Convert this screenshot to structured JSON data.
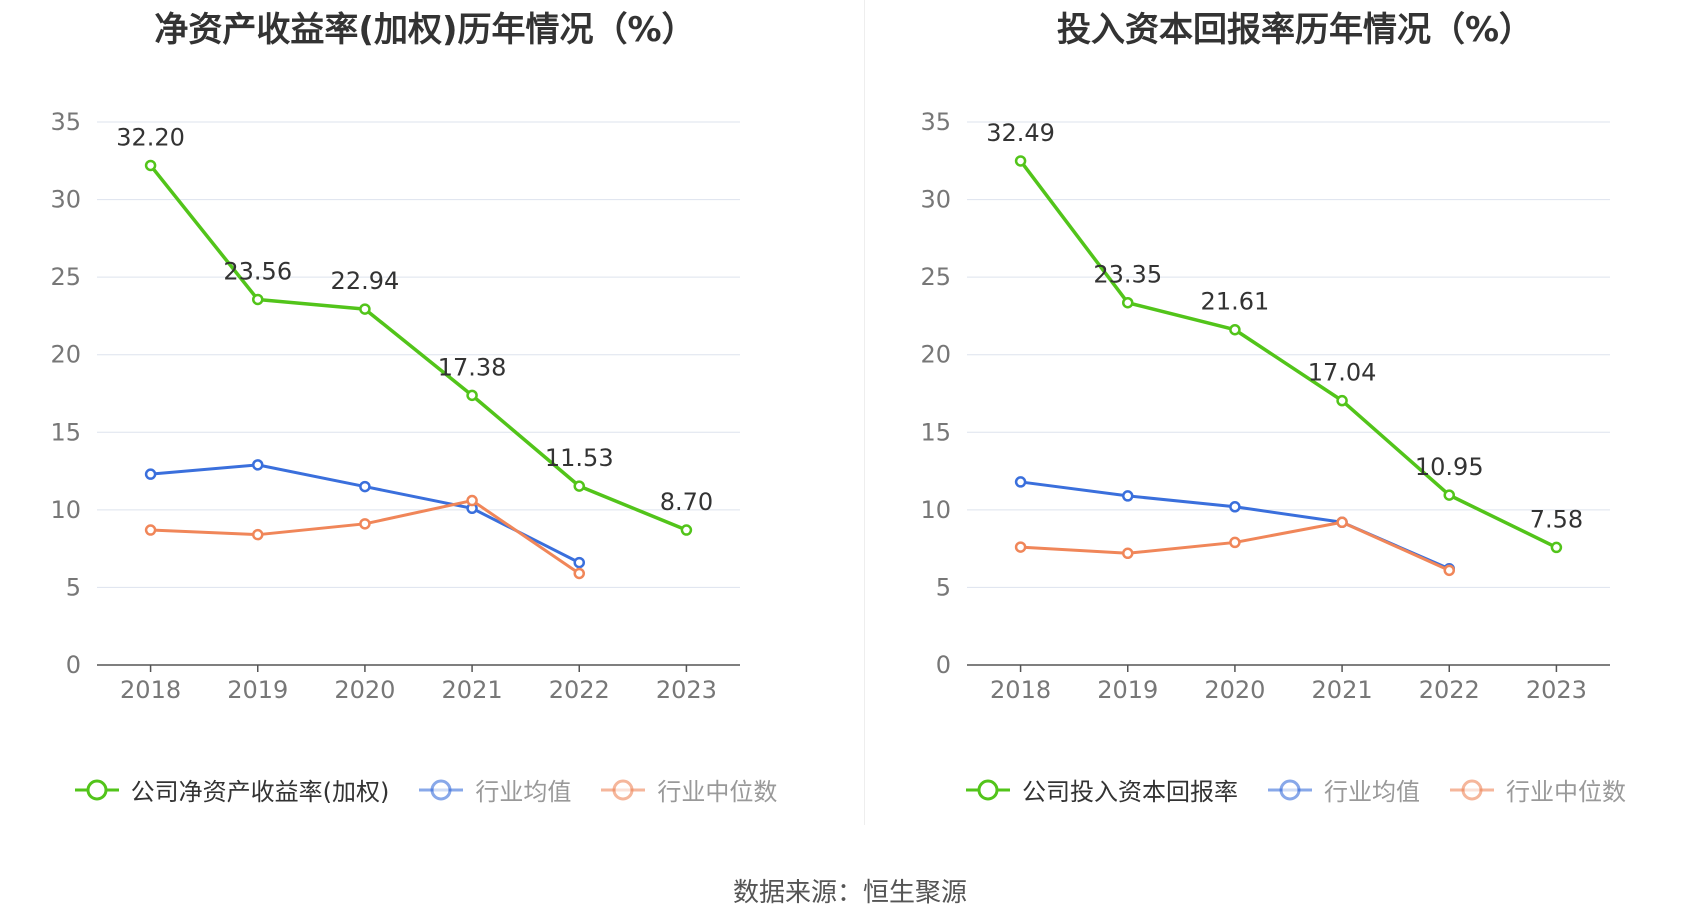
{
  "source_label": "数据来源：恒生聚源",
  "chart_data": [
    {
      "type": "line",
      "title": "净资产收益率(加权)历年情况（%）",
      "xlabel": "",
      "ylabel": "",
      "categories": [
        "2018",
        "2019",
        "2020",
        "2021",
        "2022",
        "2023"
      ],
      "ylim": [
        0,
        35
      ],
      "yticks": [
        0,
        5,
        10,
        15,
        20,
        25,
        30,
        35
      ],
      "grid": true,
      "legend_position": "bottom",
      "series": [
        {
          "name": "公司净资产收益率(加权)",
          "color": "#52c41a",
          "values": [
            32.2,
            23.56,
            22.94,
            17.38,
            11.53,
            8.7
          ],
          "labels": [
            "32.20",
            "23.56",
            "22.94",
            "17.38",
            "11.53",
            "8.70"
          ]
        },
        {
          "name": "行业均值",
          "color": "#3a6fdc",
          "values": [
            12.3,
            12.9,
            11.5,
            10.1,
            6.6,
            null
          ]
        },
        {
          "name": "行业中位数",
          "color": "#f08659",
          "values": [
            8.7,
            8.4,
            9.1,
            10.6,
            5.9,
            null
          ]
        }
      ]
    },
    {
      "type": "line",
      "title": "投入资本回报率历年情况（%）",
      "xlabel": "",
      "ylabel": "",
      "categories": [
        "2018",
        "2019",
        "2020",
        "2021",
        "2022",
        "2023"
      ],
      "ylim": [
        0,
        35
      ],
      "yticks": [
        0,
        5,
        10,
        15,
        20,
        25,
        30,
        35
      ],
      "grid": true,
      "legend_position": "bottom",
      "series": [
        {
          "name": "公司投入资本回报率",
          "color": "#52c41a",
          "values": [
            32.49,
            23.35,
            21.61,
            17.04,
            10.95,
            7.58
          ],
          "labels": [
            "32.49",
            "23.35",
            "21.61",
            "17.04",
            "10.95",
            "7.58"
          ]
        },
        {
          "name": "行业均值",
          "color": "#3a6fdc",
          "values": [
            11.8,
            10.9,
            10.2,
            9.2,
            6.2,
            null
          ]
        },
        {
          "name": "行业中位数",
          "color": "#f08659",
          "values": [
            7.6,
            7.2,
            7.9,
            9.2,
            6.1,
            null
          ]
        }
      ]
    }
  ]
}
